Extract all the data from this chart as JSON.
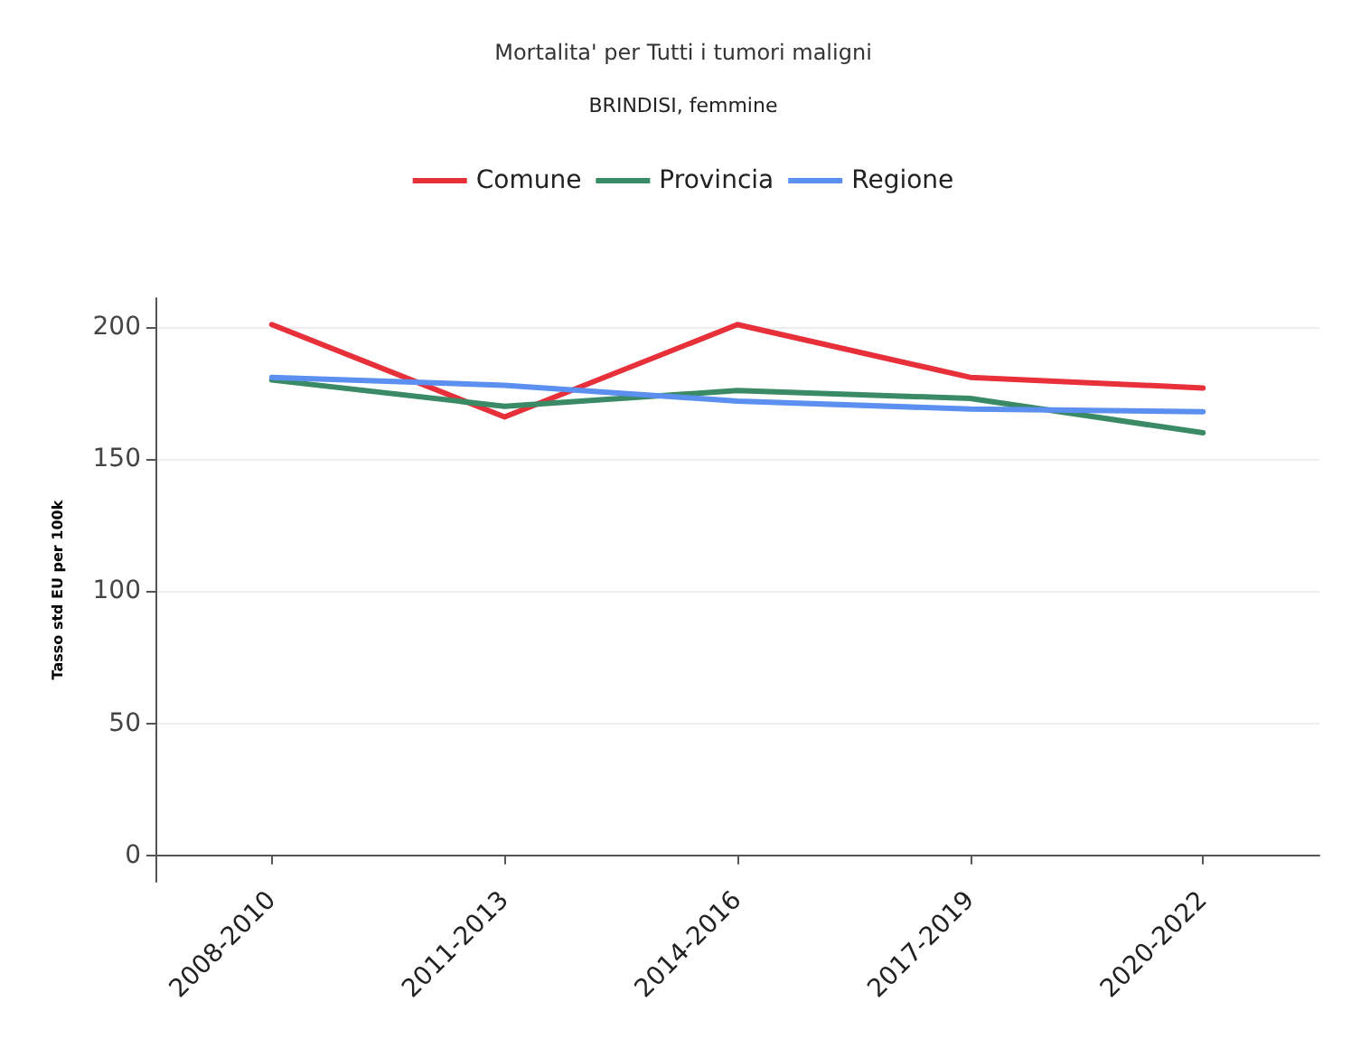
{
  "chart_data": {
    "type": "line",
    "title": "Mortalita' per Tutti i tumori maligni",
    "subtitle": "BRINDISI, femmine",
    "ylabel": "Tasso std EU per 100k",
    "categories": [
      "2008-2010",
      "2011-2013",
      "2014-2016",
      "2017-2019",
      "2020-2022"
    ],
    "series": [
      {
        "name": "Comune",
        "color": "#e8303a",
        "values": [
          201,
          166,
          201,
          181,
          177
        ]
      },
      {
        "name": "Provincia",
        "color": "#3a8a66",
        "values": [
          180,
          170,
          176,
          173,
          160
        ]
      },
      {
        "name": "Regione",
        "color": "#5b8ff0",
        "values": [
          181,
          178,
          172,
          169,
          168
        ]
      }
    ],
    "ylim": [
      -10,
      211
    ],
    "yticks": [
      0,
      50,
      100,
      150,
      200
    ],
    "grid": "y",
    "legend": "top",
    "marker": "none",
    "line_style": "solid"
  }
}
